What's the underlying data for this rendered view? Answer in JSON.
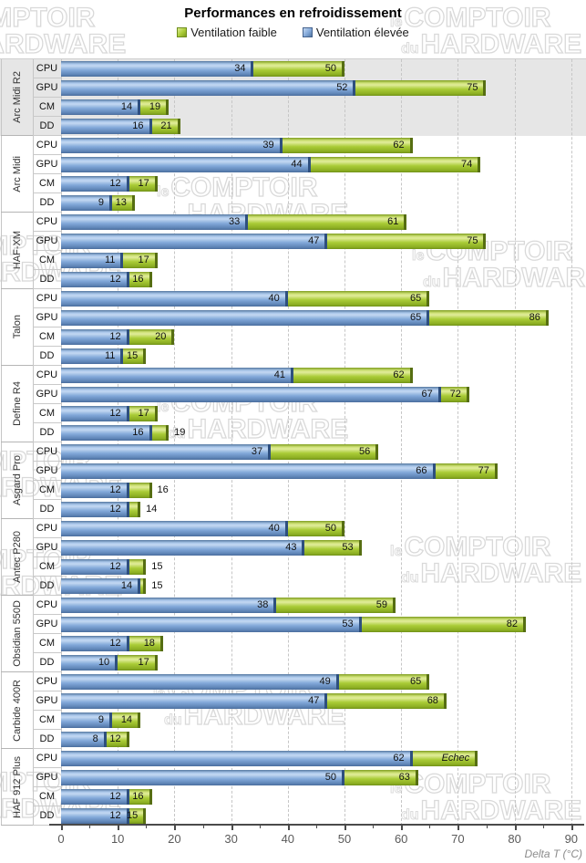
{
  "title": "Performances en refroidissement",
  "watermark": {
    "small1": "le",
    "big1": "COMPTOIR",
    "small2": "du",
    "big2": "HARDWARE",
    "positions": [
      [
        -72,
        6
      ],
      [
        428,
        6
      ],
      [
        172,
        192
      ],
      [
        -76,
        256
      ],
      [
        452,
        262
      ],
      [
        172,
        428
      ],
      [
        -76,
        492
      ],
      [
        428,
        586
      ],
      [
        -76,
        600
      ],
      [
        168,
        742
      ],
      [
        -76,
        844
      ],
      [
        428,
        846
      ]
    ]
  },
  "chart_data": {
    "type": "bar",
    "orientation": "horizontal",
    "title": "Performances en refroidissement",
    "xlabel": "Delta T (°C)",
    "xlim": [
      0,
      90
    ],
    "xticks": [
      0,
      10,
      20,
      30,
      40,
      50,
      60,
      70,
      80,
      90
    ],
    "grid": "vertical-dashed",
    "legend_position": "top",
    "series": [
      {
        "name": "Ventilation faible",
        "color": "#9BC238"
      },
      {
        "name": "Ventilation élevée",
        "color": "#7DA5D8"
      }
    ],
    "row_categories": [
      "CPU",
      "GPU",
      "CM",
      "DD"
    ],
    "groups": [
      {
        "name": "Arc Midi R2",
        "highlight": true,
        "rows": [
          {
            "label": "CPU",
            "elevee": 34,
            "faible": 50
          },
          {
            "label": "GPU",
            "elevee": 52,
            "faible": 75
          },
          {
            "label": "CM",
            "elevee": 14,
            "faible": 19
          },
          {
            "label": "DD",
            "elevee": 16,
            "faible": 21
          }
        ]
      },
      {
        "name": "Arc Midi",
        "highlight": false,
        "rows": [
          {
            "label": "CPU",
            "elevee": 39,
            "faible": 62
          },
          {
            "label": "GPU",
            "elevee": 44,
            "faible": 74
          },
          {
            "label": "CM",
            "elevee": 12,
            "faible": 17
          },
          {
            "label": "DD",
            "elevee": 9,
            "faible": 13
          }
        ]
      },
      {
        "name": "HAF-XM",
        "highlight": false,
        "rows": [
          {
            "label": "CPU",
            "elevee": 33,
            "faible": 61
          },
          {
            "label": "GPU",
            "elevee": 47,
            "faible": 75
          },
          {
            "label": "CM",
            "elevee": 11,
            "faible": 17
          },
          {
            "label": "DD",
            "elevee": 12,
            "faible": 16
          }
        ]
      },
      {
        "name": "Talon",
        "highlight": false,
        "rows": [
          {
            "label": "CPU",
            "elevee": 40,
            "faible": 65
          },
          {
            "label": "GPU",
            "elevee": 65,
            "faible": 86
          },
          {
            "label": "CM",
            "elevee": 12,
            "faible": 20
          },
          {
            "label": "DD",
            "elevee": 11,
            "faible": 15
          }
        ]
      },
      {
        "name": "Define R4",
        "highlight": false,
        "rows": [
          {
            "label": "CPU",
            "elevee": 41,
            "faible": 62
          },
          {
            "label": "GPU",
            "elevee": 67,
            "faible": 72
          },
          {
            "label": "CM",
            "elevee": 12,
            "faible": 17
          },
          {
            "label": "DD",
            "elevee": 16,
            "faible": 19,
            "label_outside": true
          }
        ]
      },
      {
        "name": "Asgard Pro",
        "highlight": false,
        "rows": [
          {
            "label": "CPU",
            "elevee": 37,
            "faible": 56
          },
          {
            "label": "GPU",
            "elevee": 66,
            "faible": 77
          },
          {
            "label": "CM",
            "elevee": 12,
            "faible": 16,
            "label_outside": true
          },
          {
            "label": "DD",
            "elevee": 12,
            "faible": 14,
            "label_outside": true
          }
        ]
      },
      {
        "name": "Antec P280",
        "highlight": false,
        "rows": [
          {
            "label": "CPU",
            "elevee": 40,
            "faible": 50
          },
          {
            "label": "GPU",
            "elevee": 43,
            "faible": 53
          },
          {
            "label": "CM",
            "elevee": 12,
            "faible": 15,
            "label_outside": true
          },
          {
            "label": "DD",
            "elevee": 14,
            "faible": 15,
            "label_outside": true
          }
        ]
      },
      {
        "name": "Obsidian 550D",
        "highlight": false,
        "rows": [
          {
            "label": "CPU",
            "elevee": 38,
            "faible": 59
          },
          {
            "label": "GPU",
            "elevee": 53,
            "faible": 82
          },
          {
            "label": "CM",
            "elevee": 12,
            "faible": 18
          },
          {
            "label": "DD",
            "elevee": 10,
            "faible": 17
          }
        ]
      },
      {
        "name": "Carbide 400R",
        "highlight": false,
        "rows": [
          {
            "label": "CPU",
            "elevee": 49,
            "faible": 65
          },
          {
            "label": "GPU",
            "elevee": 47,
            "faible": 68
          },
          {
            "label": "CM",
            "elevee": 9,
            "faible": 14
          },
          {
            "label": "DD",
            "elevee": 8,
            "faible": 12
          }
        ]
      },
      {
        "name": "HAF 912 Plus",
        "highlight": false,
        "rows": [
          {
            "label": "CPU",
            "elevee": 62,
            "faible": "Echec",
            "faible_extent": 73.5,
            "faible_italic": true
          },
          {
            "label": "GPU",
            "elevee": 50,
            "faible": 63
          },
          {
            "label": "CM",
            "elevee": 12,
            "faible": 16
          },
          {
            "label": "DD",
            "elevee": 12,
            "faible": 15
          }
        ]
      }
    ]
  }
}
